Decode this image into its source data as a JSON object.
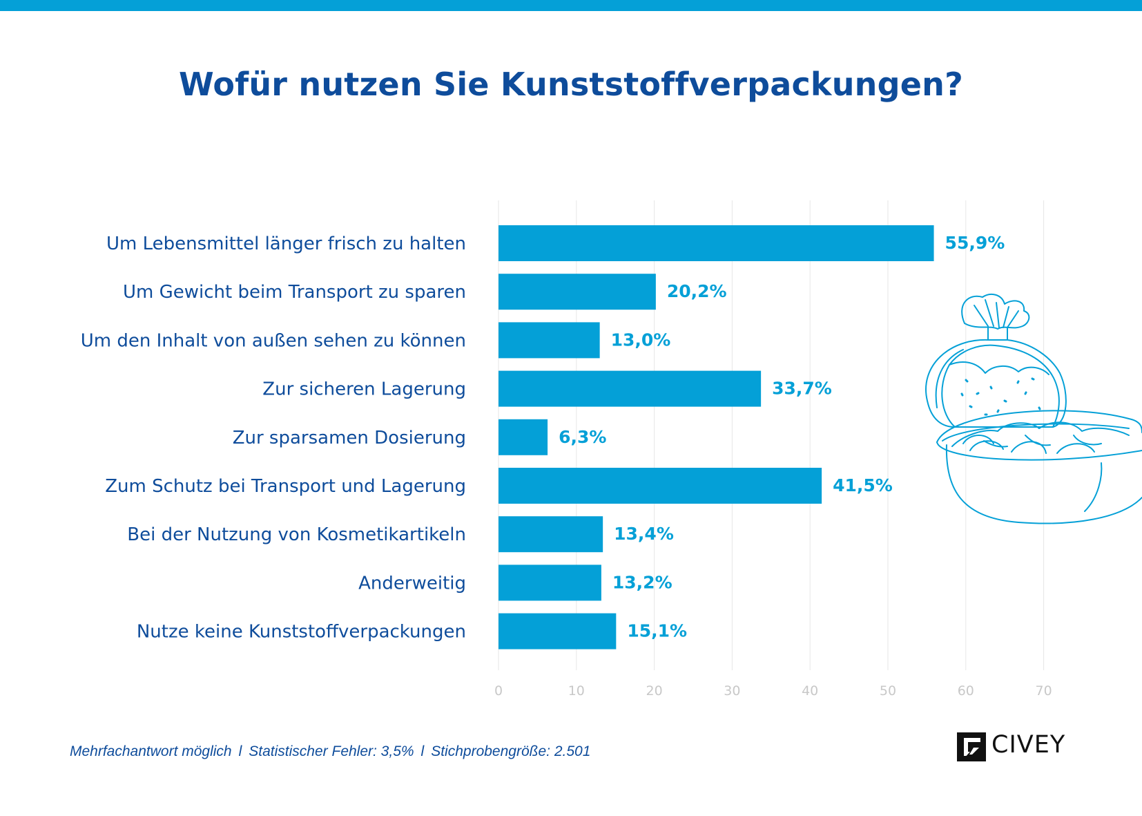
{
  "title": "Wofür nutzen Sie Kunststoffverpackungen?",
  "colors": {
    "accent": "#04a0d7",
    "title": "#0e4c9b",
    "tick": "#c8c8c8",
    "grid": "#e6e6e6"
  },
  "chart_data": {
    "type": "bar",
    "orientation": "horizontal",
    "title": "Wofür nutzen Sie Kunststoffverpackungen?",
    "categories": [
      "Um Lebensmittel länger frisch zu halten",
      "Um Gewicht beim Transport zu sparen",
      "Um den Inhalt von außen sehen zu können",
      "Zur sicheren Lagerung",
      "Zur sparsamen Dosierung",
      "Zum Schutz bei Transport und Lagerung",
      "Bei der Nutzung von Kosmetikartikeln",
      "Anderweitig",
      "Nutze keine Kunststoffverpackungen"
    ],
    "values": [
      55.9,
      20.2,
      13.0,
      33.7,
      6.3,
      41.5,
      13.4,
      13.2,
      15.1
    ],
    "value_labels": [
      "55,9%",
      "20,2%",
      "13,0%",
      "33,7%",
      "6,3%",
      "41,5%",
      "13,4%",
      "13,2%",
      "15,1%"
    ],
    "xlim": [
      0,
      70
    ],
    "x_ticks": [
      "0",
      "10",
      "20",
      "30",
      "40",
      "50",
      "60",
      "70"
    ],
    "grid": true,
    "xlabel": "",
    "ylabel": ""
  },
  "footer": {
    "items": [
      "Mehrfachantwort möglich",
      "Statistischer Fehler: 3,5%",
      "Stichprobengröße: 2.501"
    ],
    "separator": "l"
  },
  "brand": {
    "name": "CIVEY"
  },
  "illustration": {
    "icon": "bread-and-salad-bowl-icon"
  }
}
